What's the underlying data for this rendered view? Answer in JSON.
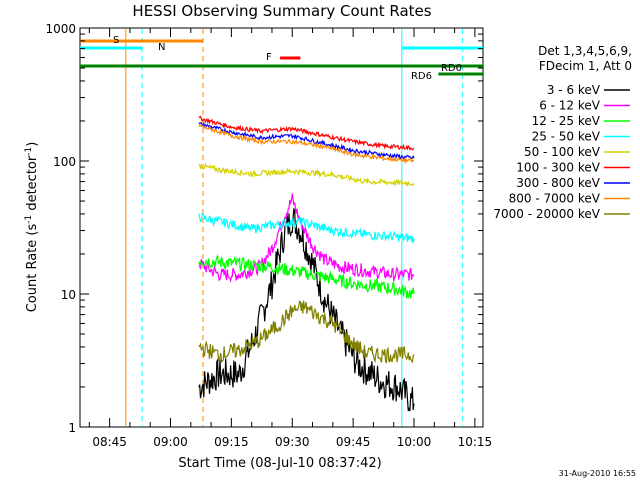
{
  "chart_data": {
    "type": "line",
    "title": "HESSI Observing Summary Count Rates",
    "xlabel": "Start Time (08-Jul-10 08:37:42)",
    "ylabel": "Count Rate (s",
    "ylabel_sup1": "-1",
    "ylabel_mid": " detector",
    "ylabel_sup2": "-1",
    "ylabel_end": ")",
    "y_scale": "log",
    "ylim": [
      1,
      1000
    ],
    "xlim": [
      "08:37:42",
      "10:17:00"
    ],
    "x_ticks": [
      "08:45",
      "09:00",
      "09:15",
      "09:30",
      "09:45",
      "10:00",
      "10:15"
    ],
    "y_ticks": [
      "1",
      "10",
      "100",
      "1000"
    ],
    "timestamp": "31-Aug-2010 16:55",
    "legend": {
      "placement": "right",
      "header1": "Det 1,3,4,5,6,9,",
      "header2": "FDecim 1, Att 0"
    },
    "series": [
      {
        "name": "3 - 6 keV",
        "color": "#000000",
        "x": [
          "09:07",
          "09:12",
          "09:17",
          "09:21",
          "09:25",
          "09:28",
          "09:30",
          "09:32",
          "09:35",
          "09:38",
          "09:42",
          "09:46",
          "09:52",
          "09:56",
          "10:00"
        ],
        "values": [
          2,
          2.5,
          2.5,
          5,
          12,
          28,
          38,
          30,
          17,
          9,
          5,
          3,
          2.2,
          2,
          1.5
        ]
      },
      {
        "name": "6 - 12 keV",
        "color": "#ff00ff",
        "x": [
          "09:07",
          "09:12",
          "09:17",
          "09:22",
          "09:25",
          "09:28",
          "09:30",
          "09:32",
          "09:35",
          "09:38",
          "09:42",
          "09:48",
          "09:55",
          "10:00"
        ],
        "values": [
          17,
          14,
          14,
          16,
          22,
          38,
          52,
          35,
          23,
          18,
          16,
          15,
          14,
          14
        ]
      },
      {
        "name": "12 - 25 keV",
        "color": "#00ff00",
        "x": [
          "09:07",
          "09:15",
          "09:25",
          "09:35",
          "09:45",
          "09:55",
          "10:00"
        ],
        "values": [
          18,
          17,
          16,
          14,
          12,
          11,
          10
        ]
      },
      {
        "name": "25 - 50 keV",
        "color": "#00ffff",
        "x": [
          "09:07",
          "09:12",
          "09:20",
          "09:28",
          "09:32",
          "09:40",
          "09:48",
          "09:55",
          "10:00"
        ],
        "values": [
          38,
          35,
          31,
          34,
          35,
          30,
          28,
          27,
          26
        ]
      },
      {
        "name": "50 - 100 keV",
        "color": "#d2d200",
        "x": [
          "09:07",
          "09:12",
          "09:20",
          "09:30",
          "09:40",
          "09:48",
          "09:55",
          "10:00"
        ],
        "values": [
          92,
          86,
          80,
          84,
          79,
          70,
          69,
          68
        ]
      },
      {
        "name": "100 - 300 keV",
        "color": "#ff0000",
        "x": [
          "09:07",
          "09:15",
          "09:22",
          "09:30",
          "09:38",
          "09:45",
          "09:52",
          "10:00"
        ],
        "values": [
          210,
          180,
          168,
          175,
          155,
          140,
          130,
          125
        ]
      },
      {
        "name": "300 - 800 keV",
        "color": "#0000ff",
        "x": [
          "09:07",
          "09:15",
          "09:22",
          "09:30",
          "09:38",
          "09:45",
          "09:52",
          "10:00"
        ],
        "values": [
          190,
          165,
          150,
          155,
          135,
          120,
          112,
          105
        ]
      },
      {
        "name": "800 - 7000 keV",
        "color": "#ff8800",
        "x": [
          "09:07",
          "09:15",
          "09:22",
          "09:30",
          "09:38",
          "09:45",
          "09:52",
          "10:00"
        ],
        "values": [
          185,
          155,
          140,
          140,
          128,
          112,
          105,
          100
        ]
      },
      {
        "name": "7000 - 20000 keV",
        "color": "#808000",
        "x": [
          "09:07",
          "09:12",
          "09:17",
          "09:22",
          "09:27",
          "09:30",
          "09:33",
          "09:36",
          "09:40",
          "09:44",
          "09:48",
          "09:52",
          "10:00"
        ],
        "values": [
          4,
          3.5,
          3.8,
          4.5,
          6,
          7.5,
          8,
          7,
          6,
          4.5,
          3.6,
          3.5,
          3.5
        ]
      }
    ],
    "annotations": {
      "S": {
        "label": "S",
        "color": "#ff8800",
        "from": "08:37:42",
        "to": "09:08"
      },
      "N": {
        "label": "N",
        "color": "#00ffff",
        "from": "08:37:42",
        "to": "08:53"
      },
      "F": {
        "label": "F",
        "color": "#ff0000",
        "from": "09:27",
        "to": "09:32"
      },
      "RD0": {
        "label": "RD0",
        "color": "#00ffff",
        "from": "09:57",
        "to": "10:17:00"
      },
      "RD6": {
        "label": "RD6",
        "color": "#008000",
        "from": "10:06",
        "to": "10:17:00"
      },
      "green_line": {
        "color": "#008000",
        "from": "08:37:42",
        "to": "10:17:00",
        "value": 500
      }
    },
    "vertical_markers": [
      {
        "time": "08:49",
        "color": "#ff8800",
        "style": "solid"
      },
      {
        "time": "08:53",
        "color": "#00ffff",
        "style": "dashed"
      },
      {
        "time": "09:08",
        "color": "#ff8800",
        "style": "dashed"
      },
      {
        "time": "09:57",
        "color": "#00ffff",
        "style": "solid"
      },
      {
        "time": "10:12",
        "color": "#00ffff",
        "style": "dashed"
      }
    ]
  }
}
